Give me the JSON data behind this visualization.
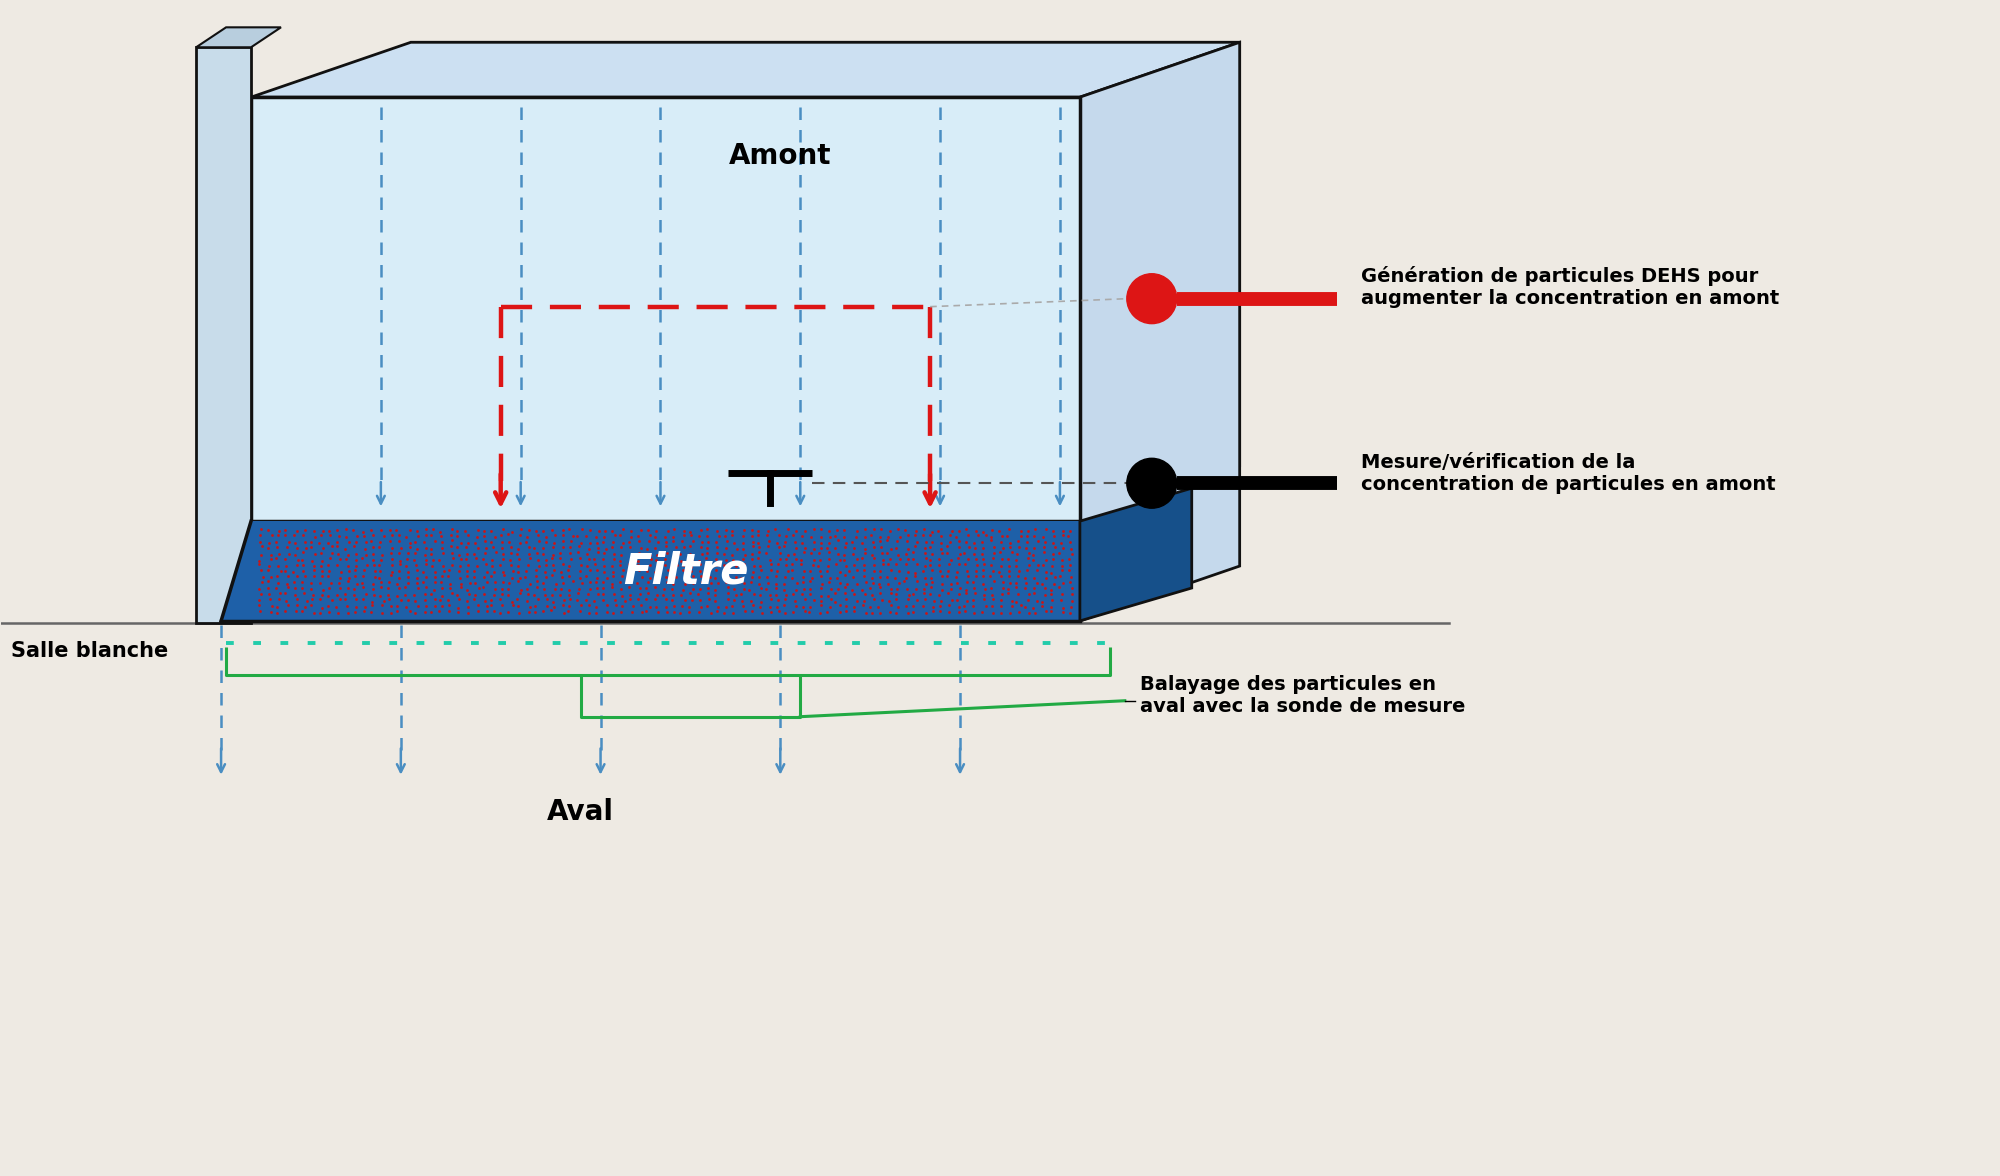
{
  "bg_color": "#eeeae3",
  "box_face_color": "#d8edf8",
  "box_side_color": "#bdd5ea",
  "box_top_color": "#cce0f2",
  "box_edge": "#111111",
  "filter_blue": "#1e60a8",
  "filter_red": "#cc1515",
  "arrow_blue": "#4a8ec2",
  "dashed_red": "#dd1515",
  "green": "#22aa44",
  "teal_dot": "#22ccaa",
  "label_upstream": "Amont",
  "label_downstream": "Aval",
  "label_cleanroom": "Salle blanche",
  "label_filter": "Filtre",
  "label_gen": "Génération de particules DEHS pour\naugmenter la concentration en amont",
  "label_meas": "Mesure/vérification de la\nconcentration de particules en amont",
  "label_sweep": "Balayage des particules en\naval avec la sonde de mesure"
}
